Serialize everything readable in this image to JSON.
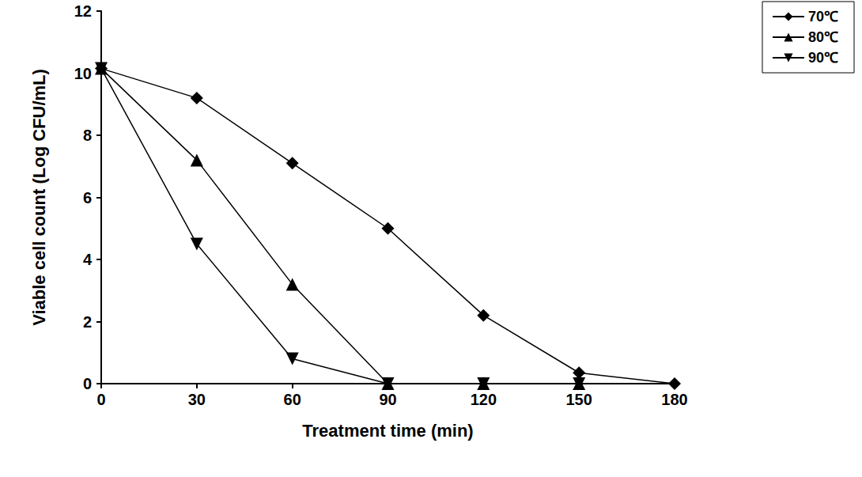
{
  "chart_data": {
    "type": "line",
    "x_label": "Treatment time (min)",
    "y_label": "Viable cell count (Log CFU/mL)",
    "x": [
      0,
      30,
      60,
      90,
      120,
      150,
      180
    ],
    "series": [
      {
        "name": "70℃",
        "color": "#000000",
        "marker": "diamond",
        "line_style": "solid",
        "values": [
          10.15,
          9.2,
          7.1,
          5.0,
          2.2,
          0.35,
          0
        ]
      },
      {
        "name": "80℃",
        "color": "#000000",
        "marker": "triangle-up",
        "line_style": "solid",
        "values": [
          10.15,
          7.2,
          3.2,
          0,
          0,
          0,
          null
        ]
      },
      {
        "name": "90℃",
        "color": "#000000",
        "marker": "triangle-down",
        "line_style": "solid",
        "values": [
          10.15,
          4.5,
          0.8,
          0,
          0,
          0,
          null
        ]
      }
    ],
    "xlim": [
      0,
      180
    ],
    "xticks": [
      0,
      30,
      60,
      90,
      120,
      150,
      180
    ],
    "ylim": [
      0,
      12
    ],
    "yticks": [
      0,
      2,
      4,
      6,
      8,
      10,
      12
    ],
    "grid": false,
    "legend": "upper right"
  }
}
